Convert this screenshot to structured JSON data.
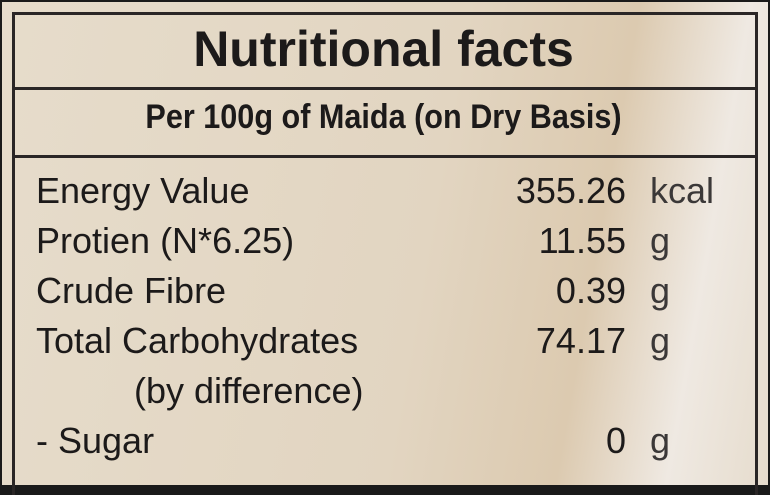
{
  "title": "Nutritional facts",
  "subtitle": "Per 100g of Maida (on Dry Basis)",
  "rows": [
    {
      "label": "Energy Value",
      "value": "355.26",
      "unit": "kcal"
    },
    {
      "label": "Protien (N*6.25)",
      "value": "11.55",
      "unit": "g"
    },
    {
      "label": "Crude Fibre",
      "value": "0.39",
      "unit": "g"
    },
    {
      "label": "Total Carbohydrates",
      "value": "74.17",
      "unit": "g"
    },
    {
      "label": "    (by difference)",
      "value": "",
      "unit": ""
    },
    {
      "label": "- Sugar",
      "value": "0",
      "unit": "g"
    }
  ]
}
